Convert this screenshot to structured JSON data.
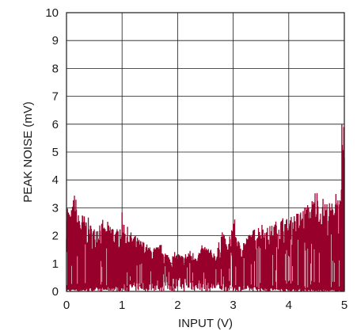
{
  "chart_data": {
    "type": "area",
    "xlabel": "INPUT (V)",
    "ylabel": "PEAK NOISE (mV)",
    "xlim": [
      0,
      5
    ],
    "ylim": [
      0,
      10
    ],
    "x_ticks": [
      "0",
      "1",
      "2",
      "3",
      "4",
      "5"
    ],
    "y_ticks": [
      "0",
      "1",
      "2",
      "3",
      "4",
      "5",
      "6",
      "7",
      "8",
      "9",
      "10"
    ],
    "grid": true,
    "series": [
      {
        "color": "#96002a",
        "envelope_x": [
          0,
          0.05,
          0.1,
          0.15,
          0.2,
          0.3,
          0.4,
          0.5,
          0.6,
          0.7,
          0.8,
          0.9,
          1.0,
          1.1,
          1.2,
          1.3,
          1.4,
          1.5,
          1.6,
          1.7,
          1.8,
          1.9,
          2.0,
          2.1,
          2.2,
          2.3,
          2.4,
          2.5,
          2.6,
          2.7,
          2.8,
          2.9,
          3.0,
          3.1,
          3.2,
          3.3,
          3.4,
          3.5,
          3.6,
          3.7,
          3.8,
          3.9,
          4.0,
          4.1,
          4.2,
          4.3,
          4.4,
          4.5,
          4.55,
          4.6,
          4.7,
          4.8,
          4.85,
          4.9,
          4.95,
          4.97,
          5.0
        ],
        "envelope_peak": [
          3.4,
          2.9,
          3.0,
          3.7,
          2.8,
          2.8,
          2.5,
          2.3,
          2.6,
          2.3,
          2.5,
          2.2,
          2.7,
          2.2,
          2.1,
          1.9,
          1.8,
          1.6,
          1.6,
          1.7,
          1.4,
          1.3,
          1.4,
          1.3,
          1.5,
          1.4,
          1.5,
          1.7,
          1.5,
          1.4,
          2.3,
          1.6,
          2.7,
          1.8,
          1.9,
          2.1,
          2.3,
          2.5,
          2.3,
          2.4,
          2.6,
          2.7,
          2.6,
          2.8,
          2.9,
          3.1,
          3.2,
          3.8,
          3.0,
          3.4,
          3.2,
          3.2,
          3.9,
          3.2,
          3.5,
          6.0,
          6.0
        ],
        "envelope_trough": [
          0.1,
          0.12,
          0.1,
          0.15,
          0.12,
          0.1,
          0.12,
          0.15,
          0.14,
          0.16,
          0.2,
          0.22,
          0.25,
          0.3,
          0.35,
          0.4,
          0.45,
          0.45,
          0.5,
          0.5,
          0.55,
          0.55,
          0.6,
          0.55,
          0.55,
          0.5,
          0.5,
          0.45,
          0.45,
          0.4,
          0.35,
          0.3,
          0.3,
          0.25,
          0.25,
          0.2,
          0.2,
          0.18,
          0.15,
          0.15,
          0.12,
          0.12,
          0.1,
          0.1,
          0.1,
          0.1,
          0.08,
          0.08,
          0.08,
          0.08,
          0.06,
          0.06,
          0.06,
          0.05,
          0.05,
          0.05,
          0.05
        ]
      }
    ]
  }
}
